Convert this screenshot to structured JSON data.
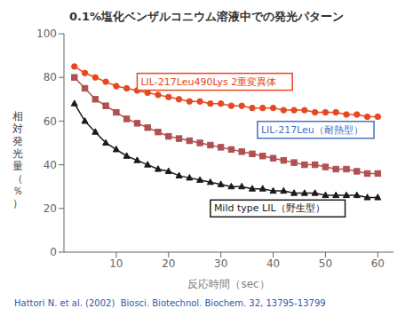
{
  "chart_data": {
    "type": "line",
    "title": "0.1%塩化ベンザルコニウム溶液中での発光パターン",
    "xlabel": "反応時間（sec）",
    "ylabel": "相対発光量（％）",
    "x": [
      2,
      4,
      6,
      8,
      10,
      12,
      14,
      16,
      18,
      20,
      22,
      24,
      26,
      28,
      30,
      32,
      34,
      36,
      38,
      40,
      42,
      44,
      46,
      48,
      50,
      52,
      54,
      56,
      58,
      60
    ],
    "series": [
      {
        "color": "#E84820",
        "marker": "circle",
        "values": [
          85,
          82,
          80,
          78,
          76,
          75,
          74,
          73,
          72,
          71,
          70,
          69,
          69,
          68,
          68,
          67,
          67,
          66,
          66,
          66,
          65,
          65,
          65,
          64,
          64,
          64,
          63,
          63,
          62,
          62
        ]
      },
      {
        "color": "#B05050",
        "marker": "square",
        "values": [
          80,
          75,
          70,
          67,
          64,
          61,
          59,
          57,
          55,
          53,
          52,
          51,
          50,
          49,
          48,
          47,
          46,
          45,
          44,
          43,
          42,
          41,
          40,
          40,
          39,
          38,
          38,
          37,
          36,
          36
        ]
      },
      {
        "color": "#1A1A1A",
        "marker": "triangle",
        "values": [
          68,
          60,
          55,
          50,
          47,
          44,
          42,
          40,
          38,
          37,
          35,
          34,
          33,
          32,
          31,
          30,
          30,
          29,
          29,
          28,
          28,
          27,
          27,
          27,
          26,
          26,
          26,
          26,
          25,
          25
        ]
      }
    ],
    "xlim": [
      0,
      63
    ],
    "ylim": [
      0,
      100
    ],
    "xticks": [
      10,
      20,
      30,
      40,
      50,
      60
    ],
    "yticks": [
      0,
      20,
      40,
      60,
      80,
      100
    ],
    "grid": false,
    "annotations": [
      {
        "text": "LIL-217Leu490Lys 2重変異体",
        "x": 14,
        "y": 78,
        "color": "#E84820"
      },
      {
        "text": "LIL-217Leu（耐熱型）",
        "x": 37,
        "y": 56,
        "color": "#4472C4"
      },
      {
        "text": "Mild type LIL（野生型）",
        "x": 28,
        "y": 20,
        "color": "#1A1A1A"
      }
    ],
    "caption": "Hattori N. et al. (2002)  Biosci. Biotechnol. Biochem. 32, 13795-13799",
    "caption_color": "#3355AA"
  }
}
